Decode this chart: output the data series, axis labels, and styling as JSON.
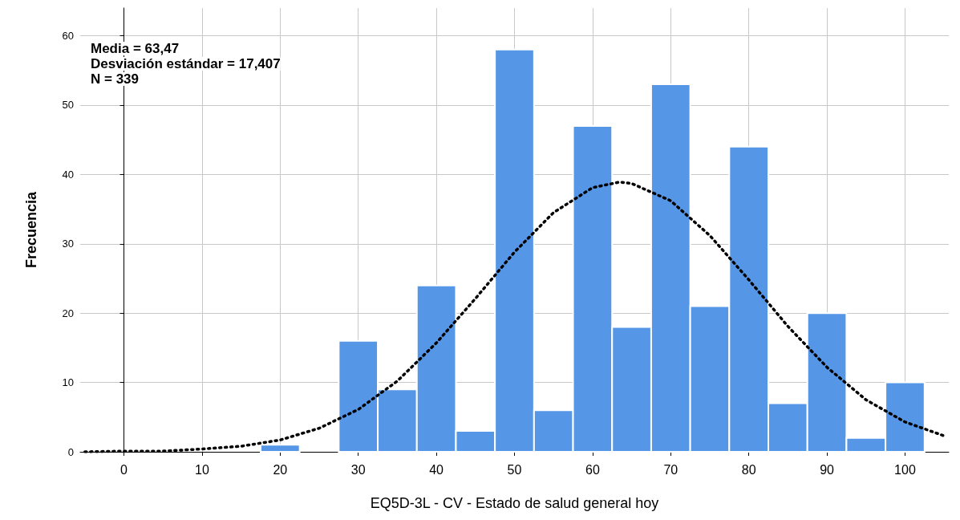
{
  "chart_data": {
    "type": "histogram",
    "xlabel": "EQ5D-3L - CV - Estado de salud general hoy",
    "ylabel": "Frecuencia",
    "bins": [
      17.5,
      22.5,
      27.5,
      32.5,
      37.5,
      42.5,
      47.5,
      52.5,
      57.5,
      62.5,
      67.5,
      72.5,
      77.5,
      82.5,
      87.5,
      92.5,
      97.5,
      102.5
    ],
    "values": [
      1,
      0,
      16,
      9,
      24,
      3,
      58,
      6,
      47,
      18,
      53,
      21,
      44,
      7,
      20,
      2,
      10
    ],
    "color": "#5596e6",
    "series": [
      {
        "type": "line",
        "color": "#000000",
        "line_style": "dotted",
        "marker": "none",
        "x": [
          -5,
          0,
          5,
          10,
          15,
          20,
          25,
          30,
          35,
          40,
          45,
          50,
          55,
          60,
          63.47,
          65,
          70,
          75,
          80,
          85,
          90,
          95,
          100,
          105
        ],
        "values": [
          0.0,
          0.1,
          0.1,
          0.4,
          0.8,
          1.7,
          3.4,
          6.1,
          10.2,
          15.7,
          22.1,
          28.8,
          34.5,
          38.1,
          38.9,
          38.7,
          36.2,
          31.2,
          24.8,
          18.1,
          12.2,
          7.5,
          4.3,
          2.3
        ]
      }
    ],
    "xlim": [
      -5.6,
      105.6
    ],
    "xticks": [
      0,
      10,
      20,
      30,
      40,
      50,
      60,
      70,
      80,
      90,
      100
    ],
    "ylim": [
      0,
      64
    ],
    "yticks": [
      0,
      10,
      20,
      30,
      40,
      50,
      60
    ],
    "grid": true,
    "annotations": [
      "Media = 63,47",
      "Desviación estándar = 17,407",
      "N = 339"
    ]
  }
}
